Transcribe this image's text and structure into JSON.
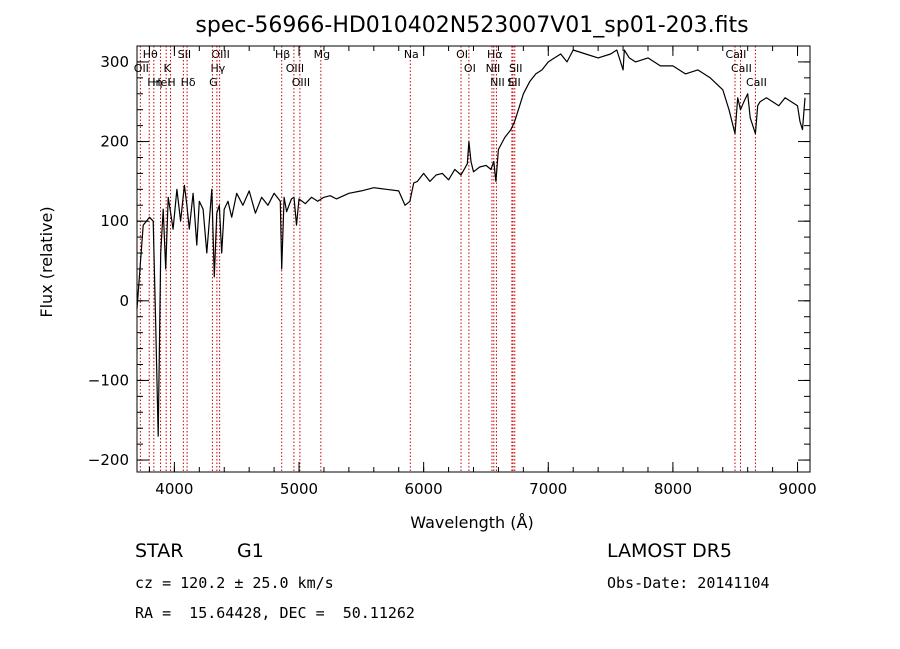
{
  "chart_data": {
    "type": "line",
    "title": "spec-56966-HD010402N523007V01_sp01-203.fits",
    "xlabel": "Wavelength (Å)",
    "ylabel": "Flux (relative)",
    "xlim": [
      3700,
      9100
    ],
    "ylim": [
      -215,
      320
    ],
    "x_ticks": [
      4000,
      5000,
      6000,
      7000,
      8000,
      9000
    ],
    "y_ticks": [
      -200,
      -100,
      0,
      100,
      200,
      300
    ],
    "series": [
      {
        "color": "#000000",
        "x": [
          3700,
          3750,
          3800,
          3830,
          3850,
          3870,
          3890,
          3910,
          3930,
          3950,
          3970,
          3990,
          4020,
          4050,
          4080,
          4100,
          4120,
          4150,
          4180,
          4200,
          4230,
          4260,
          4280,
          4300,
          4320,
          4340,
          4360,
          4380,
          4400,
          4430,
          4460,
          4500,
          4550,
          4600,
          4650,
          4700,
          4750,
          4800,
          4850,
          4861,
          4880,
          4900,
          4920,
          4940,
          4960,
          4980,
          5000,
          5050,
          5100,
          5150,
          5200,
          5250,
          5300,
          5400,
          5500,
          5600,
          5700,
          5800,
          5850,
          5890,
          5920,
          5950,
          6000,
          6050,
          6100,
          6150,
          6200,
          6250,
          6300,
          6350,
          6363,
          6380,
          6400,
          6450,
          6500,
          6540,
          6563,
          6580,
          6600,
          6650,
          6700,
          6730,
          6760,
          6800,
          6850,
          6900,
          6950,
          7000,
          7050,
          7100,
          7150,
          7200,
          7300,
          7400,
          7500,
          7550,
          7600,
          7610,
          7650,
          7700,
          7800,
          7900,
          8000,
          8100,
          8200,
          8300,
          8400,
          8450,
          8498,
          8520,
          8542,
          8570,
          8600,
          8620,
          8662,
          8680,
          8700,
          8750,
          8800,
          8850,
          8900,
          8950,
          9000,
          9020,
          9040,
          9060
        ],
        "y": [
          -10,
          95,
          105,
          100,
          -30,
          -170,
          60,
          115,
          40,
          130,
          110,
          90,
          140,
          100,
          145,
          120,
          90,
          135,
          70,
          125,
          115,
          60,
          100,
          140,
          30,
          110,
          120,
          60,
          115,
          125,
          105,
          135,
          120,
          138,
          110,
          130,
          120,
          135,
          125,
          40,
          130,
          112,
          120,
          128,
          130,
          95,
          128,
          122,
          130,
          125,
          130,
          132,
          128,
          135,
          138,
          142,
          140,
          138,
          120,
          125,
          148,
          150,
          160,
          150,
          158,
          160,
          152,
          165,
          158,
          172,
          200,
          175,
          162,
          168,
          170,
          165,
          175,
          150,
          190,
          205,
          215,
          225,
          240,
          260,
          275,
          285,
          290,
          300,
          305,
          310,
          300,
          315,
          310,
          305,
          310,
          315,
          290,
          315,
          305,
          300,
          305,
          295,
          295,
          285,
          290,
          280,
          265,
          240,
          210,
          255,
          240,
          250,
          260,
          230,
          210,
          245,
          250,
          255,
          250,
          245,
          255,
          250,
          245,
          225,
          215,
          255
        ]
      }
    ],
    "spectral_lines": [
      {
        "label": "Hθ",
        "x": 3798
      },
      {
        "label": "OII",
        "x": 3727
      },
      {
        "label": "Hη",
        "x": 3835
      },
      {
        "label": "HeI",
        "x": 3889
      },
      {
        "label": "K",
        "x": 3934
      },
      {
        "label": "H",
        "x": 3969
      },
      {
        "label": "SII",
        "x": 4072
      },
      {
        "label": "Hδ",
        "x": 4102
      },
      {
        "label": "OIII",
        "x": 4363
      },
      {
        "label": "Hγ",
        "x": 4341
      },
      {
        "label": "G",
        "x": 4305
      },
      {
        "label": "Hβ",
        "x": 4861
      },
      {
        "label": "OIII",
        "x": 4959
      },
      {
        "label": "OIII",
        "x": 5007
      },
      {
        "label": "Mg",
        "x": 5175
      },
      {
        "label": "Na",
        "x": 5893
      },
      {
        "label": "OI",
        "x": 6300
      },
      {
        "label": "OI",
        "x": 6363
      },
      {
        "label": "Hα",
        "x": 6563
      },
      {
        "label": "NII",
        "x": 6548
      },
      {
        "label": "NII",
        "x": 6584
      },
      {
        "label": "SII",
        "x": 6717
      },
      {
        "label": "Li",
        "x": 6708
      },
      {
        "label": "SII",
        "x": 6731
      },
      {
        "label": "CaII",
        "x": 8498
      },
      {
        "label": "CaII",
        "x": 8542
      },
      {
        "label": "CaII",
        "x": 8662
      }
    ],
    "line_color": "#cc0000"
  },
  "info": {
    "object_type": "STAR",
    "subclass": "G1",
    "survey": "LAMOST DR5",
    "cz_line": "cz = 120.2 ± 25.0 km/s",
    "obs_date": "Obs-Date: 20141104",
    "coords": "RA =  15.64428, DEC =  50.11262"
  }
}
